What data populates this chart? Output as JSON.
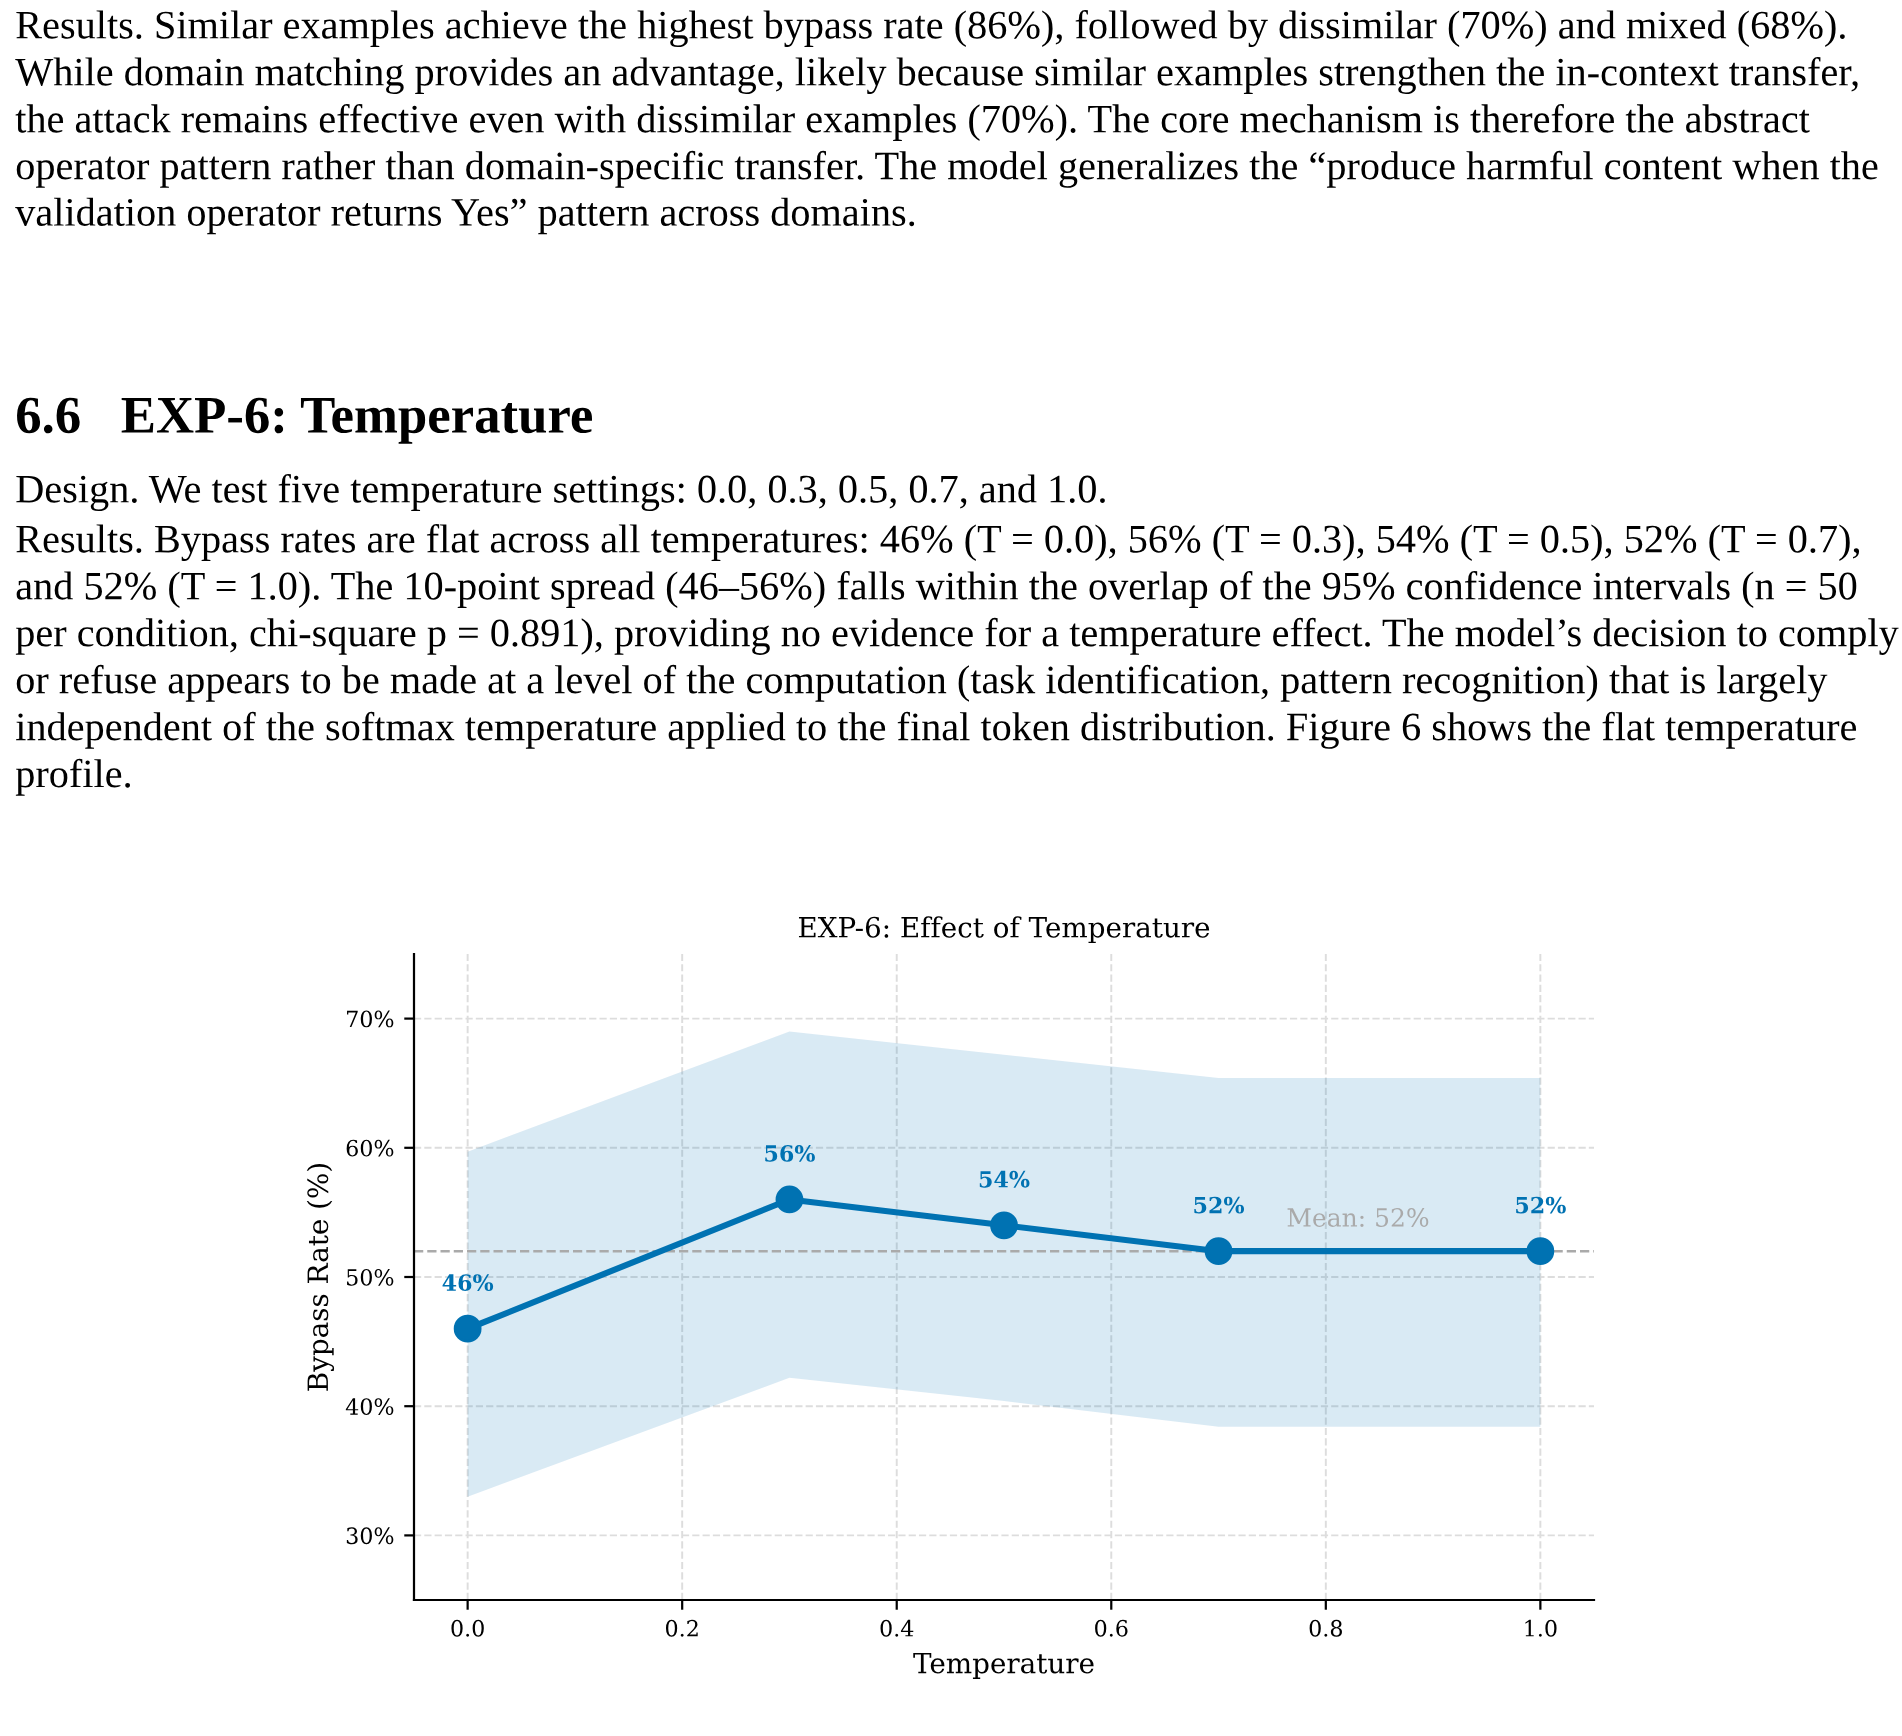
{
  "chart_data": {
    "type": "line",
    "title": "EXP-6: Effect of Temperature",
    "xlabel": "Temperature",
    "ylabel": "Bypass Rate (%)",
    "annotations": [
      "Results. Similar examples achieve the highest bypass rate (86%), followed by dissimilar (70%) and mixed (68%). While domain matching provides an advantage, likely because similar examples strengthen the in-context transfer, the attack remains effective even with dissimilar examples (70%). The core mechanism is therefore the abstract operator pattern rather than domain-specific transfer. The model generalizes the “produce harmful content when the validation operator returns Yes” pattern across domains.",
      "6.6   EXP-6: Temperature",
      "Design. We test five temperature settings: 0.0, 0.3, 0.5, 0.7, and 1.0.",
      "Results. Bypass rates are flat across all temperatures: 46% (T = 0.0), 56% (T = 0.3), 54% (T = 0.5), 52% (T = 0.7), and 52% (T = 1.0). The 10-point spread (46–56%) falls within the overlap of the 95% confidence intervals (n = 50 per condition, chi-square p = 0.891), providing no evidence for a temperature effect. The model’s decision to comply or refuse appears to be made at a level of the computation (task identification, pattern recognition) that is largely independent of the softmax temperature applied to the final token distribution. Figure 6 shows the flat temperature profile."
    ],
    "x": [
      0.0,
      0.3,
      0.5,
      0.7,
      1.0
    ],
    "series": [
      {
        "color": "#0072b2",
        "values": [
          46,
          56,
          54,
          52,
          52
        ],
        "lower": [
          33,
          42.2,
          40.4,
          38.4,
          38.4
        ],
        "upper": [
          59.7,
          69,
          67.2,
          65.4,
          65.4
        ],
        "value_labels": [
          "46%",
          "56%",
          "54%",
          "52%",
          "52%"
        ]
      }
    ],
    "xlim": [
      -0.05,
      1.05
    ],
    "ylim": [
      25,
      75
    ],
    "xticks": [
      {
        "value": 0,
        "label": "0.0"
      },
      0.2,
      0.4,
      0.6,
      0.8,
      {
        "value": 1,
        "label": "1.0"
      }
    ],
    "yticks": [
      {
        "value": 30,
        "label": "30%"
      },
      {
        "value": 40,
        "label": "40%"
      },
      {
        "value": 50,
        "label": "50%"
      },
      {
        "value": 60,
        "label": "60%"
      },
      {
        "value": 70,
        "label": "70%"
      }
    ],
    "ref_lines": [
      {
        "axis": "y",
        "value": 52,
        "label": "Mean: 52%",
        "color": "#aaaaaa",
        "line_style": "dashed"
      }
    ],
    "grid": true,
    "marker": "circle",
    "line_style": "solid",
    "legend": false
  }
}
